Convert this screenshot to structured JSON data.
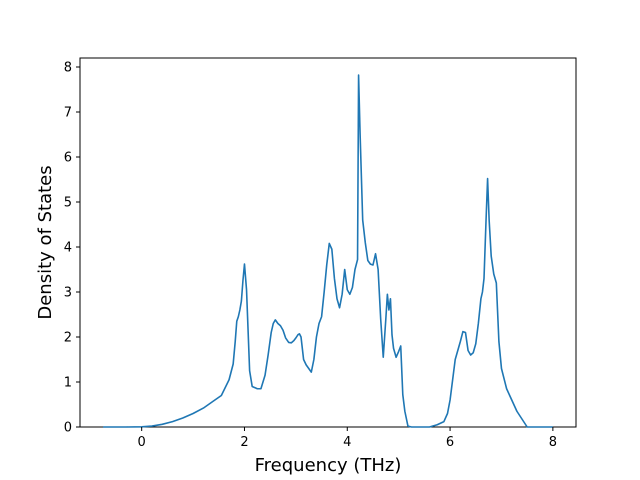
{
  "chart_data": {
    "type": "line",
    "title": "",
    "xlabel": "Frequency (THz)",
    "ylabel": "Density of States",
    "xlim": [
      -1.2,
      8.45
    ],
    "ylim": [
      0,
      8.2
    ],
    "xticks": [
      0,
      2,
      4,
      6,
      8
    ],
    "xtick_labels": [
      "0",
      "2",
      "4",
      "6",
      "8"
    ],
    "yticks": [
      0,
      1,
      2,
      3,
      4,
      5,
      6,
      7,
      8
    ],
    "ytick_labels": [
      "0",
      "1",
      "2",
      "3",
      "4",
      "5",
      "6",
      "7",
      "8"
    ],
    "grid": false,
    "line_color": "#1f77b4",
    "series": [
      {
        "x": [
          -0.75,
          -0.3,
          0.0,
          0.2,
          0.4,
          0.6,
          0.8,
          1.0,
          1.2,
          1.4,
          1.55,
          1.7,
          1.78,
          1.82,
          1.85,
          1.88,
          1.91,
          1.94,
          1.97,
          2.0,
          2.04,
          2.1,
          2.15,
          2.25,
          2.32,
          2.4,
          2.46,
          2.52,
          2.56,
          2.6,
          2.65,
          2.7,
          2.75,
          2.8,
          2.86,
          2.91,
          2.96,
          3.0,
          3.04,
          3.07,
          3.1,
          3.15,
          3.2,
          3.25,
          3.3,
          3.35,
          3.4,
          3.45,
          3.5,
          3.55,
          3.6,
          3.65,
          3.7,
          3.75,
          3.8,
          3.85,
          3.9,
          3.95,
          4.0,
          4.05,
          4.1,
          4.15,
          4.2,
          4.22,
          4.25,
          4.3,
          4.35,
          4.4,
          4.45,
          4.5,
          4.55,
          4.6,
          4.65,
          4.7,
          4.75,
          4.78,
          4.81,
          4.84,
          4.87,
          4.9,
          4.95,
          5.0,
          5.04,
          5.08,
          5.12,
          5.18,
          5.25,
          5.4,
          5.6,
          5.75,
          5.88,
          5.95,
          6.0,
          6.05,
          6.1,
          6.15,
          6.2,
          6.25,
          6.3,
          6.35,
          6.4,
          6.45,
          6.5,
          6.55,
          6.6,
          6.63,
          6.66,
          6.7,
          6.73,
          6.76,
          6.8,
          6.85,
          6.9,
          6.95,
          7.0,
          7.1,
          7.2,
          7.3,
          7.5,
          8.0
        ],
        "y": [
          0,
          0,
          0.005,
          0.02,
          0.06,
          0.12,
          0.2,
          0.3,
          0.42,
          0.58,
          0.7,
          1.05,
          1.4,
          1.9,
          2.35,
          2.45,
          2.6,
          2.8,
          3.25,
          3.62,
          3.05,
          1.25,
          0.9,
          0.85,
          0.85,
          1.15,
          1.6,
          2.1,
          2.3,
          2.38,
          2.3,
          2.25,
          2.15,
          1.98,
          1.88,
          1.87,
          1.92,
          1.98,
          2.05,
          2.07,
          2.0,
          1.5,
          1.38,
          1.3,
          1.22,
          1.5,
          2.0,
          2.3,
          2.45,
          3.0,
          3.6,
          4.08,
          3.95,
          3.3,
          2.85,
          2.65,
          2.95,
          3.5,
          3.05,
          2.95,
          3.1,
          3.5,
          3.72,
          7.82,
          6.5,
          4.6,
          4.1,
          3.7,
          3.62,
          3.6,
          3.85,
          3.5,
          2.4,
          1.55,
          2.4,
          2.95,
          2.6,
          2.85,
          2.05,
          1.75,
          1.55,
          1.68,
          1.8,
          0.72,
          0.35,
          0.02,
          0,
          0,
          0,
          0.05,
          0.12,
          0.3,
          0.6,
          1.05,
          1.5,
          1.7,
          1.9,
          2.12,
          2.1,
          1.7,
          1.6,
          1.65,
          1.85,
          2.3,
          2.85,
          3.0,
          3.3,
          4.6,
          5.52,
          4.6,
          3.8,
          3.4,
          3.2,
          1.9,
          1.3,
          0.85,
          0.6,
          0.35,
          0,
          0
        ]
      }
    ]
  }
}
